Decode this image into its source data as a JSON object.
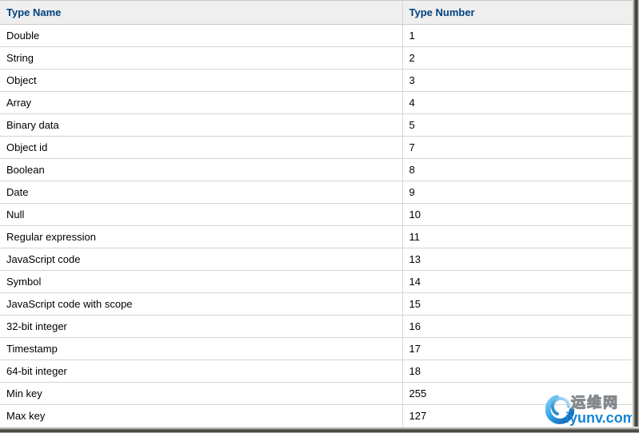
{
  "table": {
    "columns": [
      {
        "label": "Type Name"
      },
      {
        "label": "Type Number"
      }
    ],
    "rows": [
      {
        "type_name": "Double",
        "type_number": "1"
      },
      {
        "type_name": "String",
        "type_number": "2"
      },
      {
        "type_name": "Object",
        "type_number": "3"
      },
      {
        "type_name": "Array",
        "type_number": "4"
      },
      {
        "type_name": "Binary data",
        "type_number": "5"
      },
      {
        "type_name": "Object id",
        "type_number": "7"
      },
      {
        "type_name": "Boolean",
        "type_number": "8"
      },
      {
        "type_name": "Date",
        "type_number": "9"
      },
      {
        "type_name": "Null",
        "type_number": "10"
      },
      {
        "type_name": "Regular expression",
        "type_number": "11"
      },
      {
        "type_name": "JavaScript code",
        "type_number": "13"
      },
      {
        "type_name": "Symbol",
        "type_number": "14"
      },
      {
        "type_name": "JavaScript code with scope",
        "type_number": "15"
      },
      {
        "type_name": "32-bit integer",
        "type_number": "16"
      },
      {
        "type_name": "Timestamp",
        "type_number": "17"
      },
      {
        "type_name": "64-bit integer",
        "type_number": "18"
      },
      {
        "type_name": "Min key",
        "type_number": "255"
      },
      {
        "type_name": "Max key",
        "type_number": "127"
      }
    ]
  },
  "watermark": {
    "site_name_cn": "运维网",
    "site_domain": "iyunv.com"
  },
  "colors": {
    "header_text": "#00417e",
    "header_bg": "#efefef",
    "row_border": "#d4d4d4",
    "header_border": "#c9c9c9",
    "body_text": "#000000",
    "watermark_blue": "#1585d5"
  }
}
